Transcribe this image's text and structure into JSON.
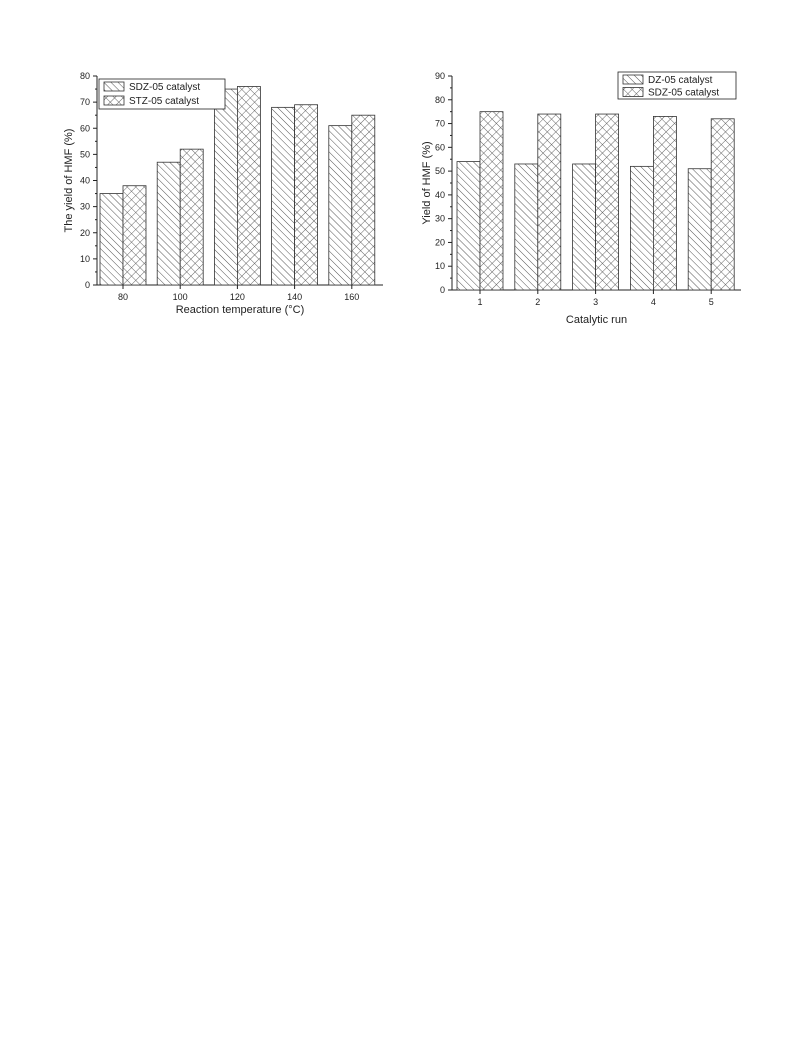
{
  "chart_data": [
    {
      "type": "bar",
      "categories": [
        "80",
        "100",
        "120",
        "140",
        "160"
      ],
      "series": [
        {
          "name": "SDZ-05 catalyst",
          "values": [
            35,
            47,
            75,
            68,
            61
          ],
          "pattern": "diagonal-hatch"
        },
        {
          "name": "STZ-05 catalyst",
          "values": [
            38,
            52,
            76,
            69,
            65
          ],
          "pattern": "cross-hatch"
        }
      ],
      "title": "",
      "xlabel": "Reaction temperature (°C)",
      "ylabel": "The yield of HMF (%)",
      "ylim": [
        0,
        80
      ],
      "yticks": [
        "0",
        "10",
        "20",
        "30",
        "40",
        "50",
        "60",
        "70",
        "80"
      ],
      "grid": false,
      "legend": "top-left"
    },
    {
      "type": "bar",
      "categories": [
        "1",
        "2",
        "3",
        "4",
        "5"
      ],
      "series": [
        {
          "name": "DZ-05 catalyst",
          "values": [
            54,
            53,
            53,
            52,
            51
          ],
          "pattern": "diagonal-hatch"
        },
        {
          "name": "SDZ-05 catalyst",
          "values": [
            75,
            74,
            74,
            73,
            72
          ],
          "pattern": "cross-hatch"
        }
      ],
      "title": "",
      "xlabel": "Catalytic run",
      "ylabel": "Yield of HMF (%)",
      "ylim": [
        0,
        90
      ],
      "yticks": [
        "0",
        "10",
        "20",
        "30",
        "40",
        "50",
        "60",
        "70",
        "80",
        "90"
      ],
      "grid": false,
      "legend": "top-right"
    }
  ],
  "colors": {
    "bar_stroke": "#333333",
    "hatch": "#555555",
    "axis": "#222222"
  }
}
